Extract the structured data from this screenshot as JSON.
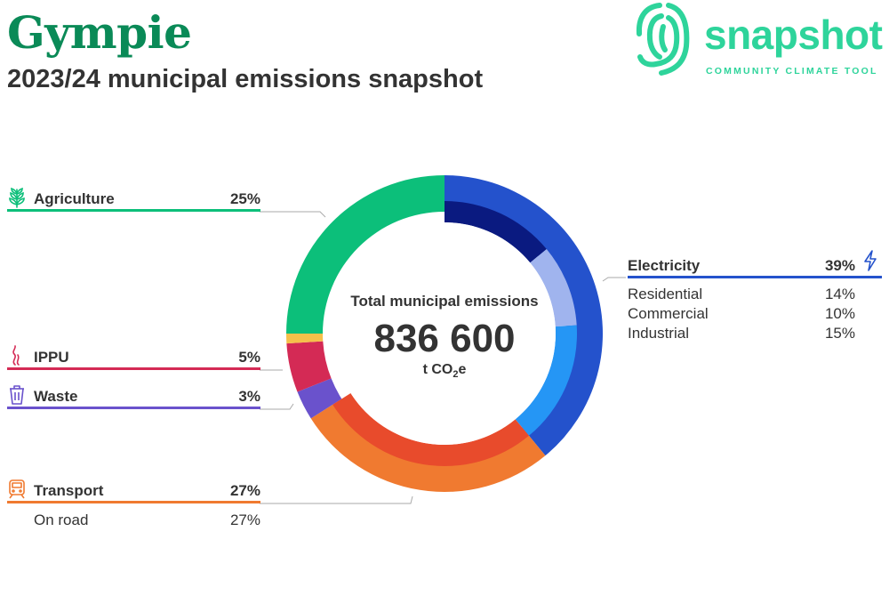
{
  "header": {
    "title": "Gympie",
    "subtitle": "2023/24 municipal emissions snapshot"
  },
  "logo": {
    "word": "snapshot",
    "tagline": "COMMUNITY CLIMATE TOOL",
    "icon": "fingerprint-swirl-icon"
  },
  "colors": {
    "brand_green": "#0a8a57",
    "logo_green": "#2ed49b",
    "agriculture": "#0cbf7a",
    "electricity": "#2452cc",
    "transport": "#f07a30",
    "ippu": "#d42a55",
    "waste": "#6a52cc"
  },
  "chart_data": {
    "type": "pie",
    "center": {
      "label": "Total municipal emissions",
      "total": "836 600",
      "unit_prefix": "t CO",
      "unit_sub": "2",
      "unit_suffix": "e"
    },
    "categories": [
      {
        "id": "electricity",
        "name": "Electricity",
        "value": 39,
        "value_label": "39%",
        "color": "#2452cc",
        "icon": "lightning-icon",
        "subcategories": [
          {
            "name": "Residential",
            "value": 14,
            "value_label": "14%",
            "color": "#0a1a80"
          },
          {
            "name": "Commercial",
            "value": 10,
            "value_label": "10%",
            "color": "#a0b4ee"
          },
          {
            "name": "Industrial",
            "value": 15,
            "value_label": "15%",
            "color": "#2596f5"
          }
        ]
      },
      {
        "id": "transport",
        "name": "Transport",
        "value": 27,
        "value_label": "27%",
        "color": "#f07a30",
        "icon": "train-icon",
        "subcategories": [
          {
            "name": "On road",
            "value": 27,
            "value_label": "27%",
            "color": "#e84b2c"
          }
        ]
      },
      {
        "id": "waste",
        "name": "Waste",
        "value": 3,
        "value_label": "3%",
        "color": "#6a52cc",
        "icon": "trash-icon",
        "subcategories": []
      },
      {
        "id": "ippu",
        "name": "IPPU",
        "value": 5,
        "value_label": "5%",
        "color": "#d42a55",
        "icon": "smoke-icon",
        "subcategories": []
      },
      {
        "id": "other",
        "name": "",
        "value": 1,
        "value_label": "",
        "color": "#f5c04a",
        "icon": "",
        "subcategories": []
      },
      {
        "id": "agriculture",
        "name": "Agriculture",
        "value": 25,
        "value_label": "25%",
        "color": "#0cbf7a",
        "icon": "wheat-icon",
        "subcategories": []
      }
    ]
  }
}
